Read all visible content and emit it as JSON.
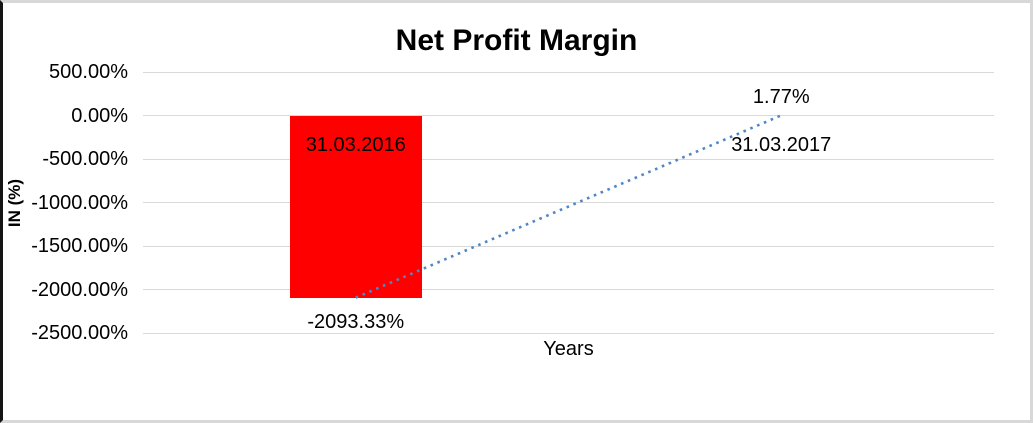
{
  "chart_data": {
    "type": "bar",
    "title": "Net Profit Margin",
    "xlabel": "Years",
    "ylabel": "IN (%)",
    "categories": [
      "31.03.2016",
      "31.03.2017"
    ],
    "values": [
      -2093.33,
      1.77
    ],
    "data_labels": [
      "-2093.33%",
      "1.77%"
    ],
    "yticks": [
      "500.00%",
      "0.00%",
      "-500.00%",
      "-1000.00%",
      "-1500.00%",
      "-2000.00%",
      "-2500.00%"
    ],
    "ylim": [
      -2500,
      500
    ],
    "grid": true,
    "legend_position": "none",
    "bar_color": "#ff0000",
    "trendline": {
      "color": "#4f86c6",
      "style": "dotted"
    }
  }
}
